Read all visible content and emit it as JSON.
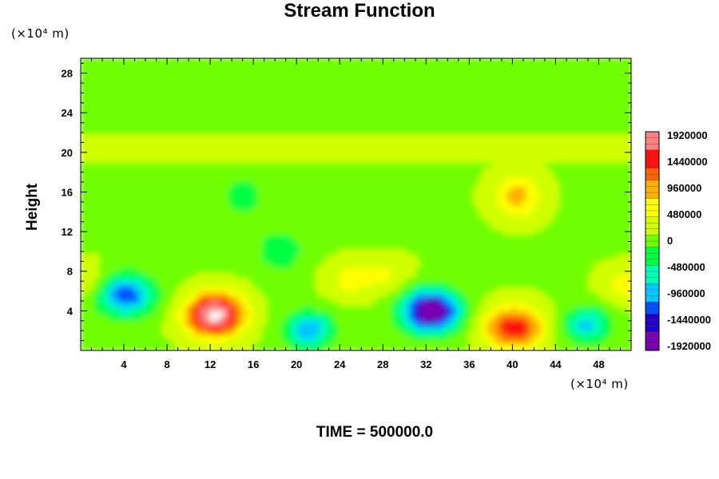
{
  "chart_data": {
    "type": "heatmap",
    "title": "Stream Function",
    "ylabel": "Height",
    "x_unit": "(×10⁴ m)",
    "y_unit": "(×10⁴ m)",
    "footer": "TIME = 500000.0",
    "xlim": [
      0,
      51
    ],
    "ylim": [
      0,
      29.5
    ],
    "x_ticks": [
      4,
      8,
      12,
      16,
      20,
      24,
      28,
      32,
      36,
      40,
      44,
      48
    ],
    "y_ticks": [
      4,
      8,
      12,
      16,
      20,
      24,
      28
    ],
    "colorbar": {
      "ticks": [
        1920000,
        1440000,
        960000,
        480000,
        0,
        -480000,
        -960000,
        -1440000,
        -1920000
      ],
      "colors": [
        "#7a00b0",
        "#2000c8",
        "#0050ff",
        "#00c8ff",
        "#00ffb0",
        "#00ff40",
        "#70ff00",
        "#d0ff00",
        "#ffff00",
        "#ffb000",
        "#ff6000",
        "#ff1010",
        "#ff8080"
      ]
    },
    "features": [
      {
        "x": 4.2,
        "y": 5.5,
        "value": -1300000
      },
      {
        "x": 12.5,
        "y": 3.5,
        "value": 2100000
      },
      {
        "x": 21.2,
        "y": 2.0,
        "value": -1100000
      },
      {
        "x": 32.5,
        "y": 3.9,
        "value": -2100000
      },
      {
        "x": 40.2,
        "y": 2.2,
        "value": 1500000
      },
      {
        "x": 47.0,
        "y": 2.5,
        "value": -900000
      },
      {
        "x": 40.5,
        "y": 15.5,
        "value": 800000
      },
      {
        "x": 15.0,
        "y": 15.5,
        "value": -350000
      },
      {
        "x": 18.5,
        "y": 10.0,
        "value": -450000
      },
      {
        "x": 25.0,
        "y": 7.0,
        "value": 500000
      },
      {
        "x": 28.5,
        "y": 7.5,
        "value": 400000
      },
      {
        "x": 50.5,
        "y": 6.5,
        "value": 500000
      },
      {
        "x": 0.5,
        "y": 7.0,
        "value": 400000
      }
    ]
  }
}
